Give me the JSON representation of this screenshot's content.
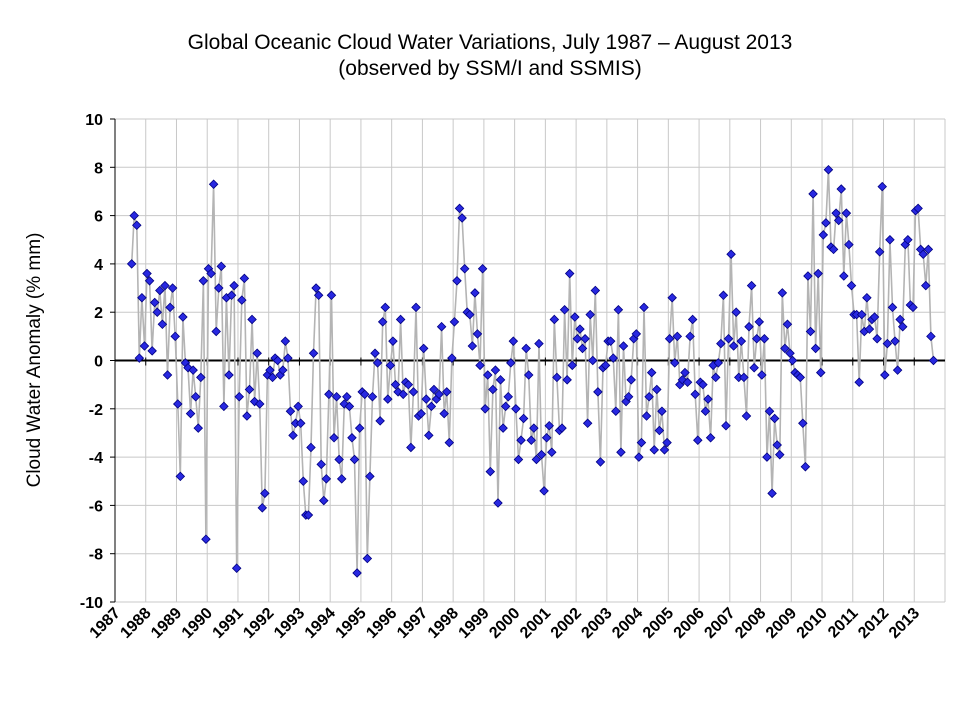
{
  "chart_data": {
    "type": "line",
    "title": "Global Oceanic Cloud Water Variations, July 1987 – August 2013",
    "subtitle": "(observed by SSM/I and SSMIS)",
    "xlabel": "",
    "ylabel": "Cloud Water Anomaly (% mm)",
    "xlim": [
      "1987-01",
      "2014-01"
    ],
    "ylim": [
      -10,
      10
    ],
    "y_ticks": [
      10,
      8,
      6,
      4,
      2,
      0,
      -2,
      -4,
      -6,
      -8,
      -10
    ],
    "x_ticks": [
      "1987",
      "1988",
      "1989",
      "1990",
      "1991",
      "1992",
      "1993",
      "1994",
      "1995",
      "1996",
      "1997",
      "1998",
      "1999",
      "2000",
      "2001",
      "2002",
      "2003",
      "2004",
      "2005",
      "2006",
      "2007",
      "2008",
      "2009",
      "2010",
      "2011",
      "2012",
      "2013"
    ],
    "grid": true,
    "legend": "none",
    "colors": {
      "marker_fill": "#2828e0",
      "marker_stroke": "#000080",
      "line": "#b4b4b4",
      "zero_line": "#000000",
      "grid": "#c8c8c8"
    },
    "series": [
      {
        "x": [
          "1987-07",
          "1987-08",
          "1987-09",
          "1987-10",
          "1987-11",
          "1987-12",
          "1988-01",
          "1988-02",
          "1988-03",
          "1988-04",
          "1988-05",
          "1988-06",
          "1988-07",
          "1988-08",
          "1988-09",
          "1988-10",
          "1988-11",
          "1988-12",
          "1989-01",
          "1989-02",
          "1989-03",
          "1989-04",
          "1989-05",
          "1989-06",
          "1989-07",
          "1989-08",
          "1989-09",
          "1989-10",
          "1989-11",
          "1989-12",
          "1990-01",
          "1990-02",
          "1990-03",
          "1990-04",
          "1990-05",
          "1990-06",
          "1990-07",
          "1990-08",
          "1990-09",
          "1990-10",
          "1990-11",
          "1990-12",
          "1991-01",
          "1991-02",
          "1991-03",
          "1991-04",
          "1991-05",
          "1991-06",
          "1991-07",
          "1991-08",
          "1991-09",
          "1991-10",
          "1991-11",
          "1991-12",
          "1992-01",
          "1992-02",
          "1992-03",
          "1992-04",
          "1992-05",
          "1992-06",
          "1992-07",
          "1992-08",
          "1992-09",
          "1992-10",
          "1992-11",
          "1992-12",
          "1993-01",
          "1993-02",
          "1993-03",
          "1993-04",
          "1993-05",
          "1993-06",
          "1993-07",
          "1993-08",
          "1993-09",
          "1993-10",
          "1993-11",
          "1993-12",
          "1994-01",
          "1994-02",
          "1994-03",
          "1994-04",
          "1994-05",
          "1994-06",
          "1994-07",
          "1994-08",
          "1994-09",
          "1994-10",
          "1994-11",
          "1994-12",
          "1995-01",
          "1995-02",
          "1995-03",
          "1995-04",
          "1995-05",
          "1995-06",
          "1995-07",
          "1995-08",
          "1995-09",
          "1995-10",
          "1995-11",
          "1995-12",
          "1996-01",
          "1996-02",
          "1996-03",
          "1996-04",
          "1996-05",
          "1996-06",
          "1996-07",
          "1996-08",
          "1996-09",
          "1996-10",
          "1996-11",
          "1996-12",
          "1997-01",
          "1997-02",
          "1997-03",
          "1997-04",
          "1997-05",
          "1997-06",
          "1997-07",
          "1997-08",
          "1997-09",
          "1997-10",
          "1997-11",
          "1997-12",
          "1998-01",
          "1998-02",
          "1998-03",
          "1998-04",
          "1998-05",
          "1998-06",
          "1998-07",
          "1998-08",
          "1998-09",
          "1998-10",
          "1998-11",
          "1998-12",
          "1999-01",
          "1999-02",
          "1999-03",
          "1999-04",
          "1999-05",
          "1999-06",
          "1999-07",
          "1999-08",
          "1999-09",
          "1999-10",
          "1999-11",
          "1999-12",
          "2000-01",
          "2000-02",
          "2000-03",
          "2000-04",
          "2000-05",
          "2000-06",
          "2000-07",
          "2000-08",
          "2000-09",
          "2000-10",
          "2000-11",
          "2000-12",
          "2001-01",
          "2001-02",
          "2001-03",
          "2001-04",
          "2001-05",
          "2001-06",
          "2001-07",
          "2001-08",
          "2001-09",
          "2001-10",
          "2001-11",
          "2001-12",
          "2002-01",
          "2002-02",
          "2002-03",
          "2002-04",
          "2002-05",
          "2002-06",
          "2002-07",
          "2002-08",
          "2002-09",
          "2002-10",
          "2002-11",
          "2002-12",
          "2003-01",
          "2003-02",
          "2003-03",
          "2003-04",
          "2003-05",
          "2003-06",
          "2003-07",
          "2003-08",
          "2003-09",
          "2003-10",
          "2003-11",
          "2003-12",
          "2004-01",
          "2004-02",
          "2004-03",
          "2004-04",
          "2004-05",
          "2004-06",
          "2004-07",
          "2004-08",
          "2004-09",
          "2004-10",
          "2004-11",
          "2004-12",
          "2005-01",
          "2005-02",
          "2005-03",
          "2005-04",
          "2005-05",
          "2005-06",
          "2005-07",
          "2005-08",
          "2005-09",
          "2005-10",
          "2005-11",
          "2005-12",
          "2006-01",
          "2006-02",
          "2006-03",
          "2006-04",
          "2006-05",
          "2006-06",
          "2006-07",
          "2006-08",
          "2006-09",
          "2006-10",
          "2006-11",
          "2006-12",
          "2007-01",
          "2007-02",
          "2007-03",
          "2007-04",
          "2007-05",
          "2007-06",
          "2007-07",
          "2007-08",
          "2007-09",
          "2007-10",
          "2007-11",
          "2007-12",
          "2008-01",
          "2008-02",
          "2008-03",
          "2008-04",
          "2008-05",
          "2008-06",
          "2008-07",
          "2008-08",
          "2008-09",
          "2008-10",
          "2008-11",
          "2008-12",
          "2009-01",
          "2009-02",
          "2009-03",
          "2009-04",
          "2009-05",
          "2009-06",
          "2009-07",
          "2009-08",
          "2009-09",
          "2009-10",
          "2009-11",
          "2009-12",
          "2010-01",
          "2010-02",
          "2010-03",
          "2010-04",
          "2010-05",
          "2010-06",
          "2010-07",
          "2010-08",
          "2010-09",
          "2010-10",
          "2010-11",
          "2010-12",
          "2011-01",
          "2011-02",
          "2011-03",
          "2011-04",
          "2011-05",
          "2011-06",
          "2011-07",
          "2011-08",
          "2011-09",
          "2011-10",
          "2011-11",
          "2011-12",
          "2012-01",
          "2012-02",
          "2012-03",
          "2012-04",
          "2012-05",
          "2012-06",
          "2012-07",
          "2012-08",
          "2012-09",
          "2012-10",
          "2012-11",
          "2012-12",
          "2013-01",
          "2013-02",
          "2013-03",
          "2013-04",
          "2013-05",
          "2013-06",
          "2013-07",
          "2013-08"
        ],
        "y": [
          4.0,
          6.0,
          5.6,
          0.1,
          2.6,
          0.6,
          3.6,
          3.3,
          0.4,
          2.4,
          2.0,
          2.9,
          1.5,
          3.1,
          -0.6,
          2.2,
          3.0,
          1.0,
          -1.8,
          -4.8,
          1.8,
          -0.1,
          -0.3,
          -2.2,
          -0.4,
          -1.5,
          -2.8,
          -0.7,
          3.3,
          -7.4,
          3.8,
          3.6,
          7.3,
          1.2,
          3.0,
          3.9,
          -1.9,
          2.6,
          -0.6,
          2.7,
          3.1,
          -8.6,
          -1.5,
          2.5,
          3.4,
          -2.3,
          -1.2,
          1.7,
          -1.7,
          0.3,
          -1.8,
          -6.1,
          -5.5,
          -0.6,
          -0.4,
          -0.7,
          0.1,
          0.0,
          -0.6,
          -0.4,
          0.8,
          0.1,
          -2.1,
          -3.1,
          -2.6,
          -1.9,
          -2.6,
          -5.0,
          -6.4,
          -6.4,
          -3.6,
          0.3,
          3.0,
          2.7,
          -4.3,
          -5.8,
          -4.9,
          -1.4,
          2.7,
          -3.2,
          -1.5,
          -4.1,
          -4.9,
          -1.8,
          -1.5,
          -1.9,
          -3.2,
          -4.1,
          -8.8,
          -2.8,
          -1.3,
          -1.4,
          -8.2,
          -4.8,
          -1.5,
          0.3,
          -0.1,
          -2.5,
          1.6,
          2.2,
          -1.6,
          -0.2,
          0.8,
          -1.0,
          -1.3,
          1.7,
          -1.4,
          -0.9,
          -1.0,
          -3.6,
          -1.3,
          2.2,
          -2.3,
          -2.2,
          0.5,
          -1.6,
          -3.1,
          -1.9,
          -1.2,
          -1.6,
          -1.4,
          1.4,
          -2.2,
          -1.3,
          -3.4,
          0.1,
          1.6,
          3.3,
          6.3,
          5.9,
          3.8,
          2.0,
          1.9,
          0.6,
          2.8,
          1.1,
          -0.2,
          3.8,
          -2.0,
          -0.6,
          -4.6,
          -1.2,
          -0.4,
          -5.9,
          -0.8,
          -2.8,
          -1.9,
          -1.5,
          -0.1,
          0.8,
          -2.0,
          -4.1,
          -3.3,
          -2.4,
          0.5,
          -0.6,
          -3.3,
          -2.8,
          -4.1,
          0.7,
          -3.9,
          -5.4,
          -3.2,
          -2.7,
          -3.8,
          1.7,
          -0.7,
          -2.9,
          -2.8,
          2.1,
          -0.8,
          3.6,
          -0.2,
          1.8,
          0.9,
          1.3,
          0.5,
          0.9,
          -2.6,
          1.9,
          0.0,
          2.9,
          -1.3,
          -4.2,
          -0.3,
          -0.2,
          0.8,
          0.8,
          0.1,
          -2.1,
          2.1,
          -3.8,
          0.6,
          -1.7,
          -1.5,
          -0.8,
          0.9,
          1.1,
          -4.0,
          -3.4,
          2.2,
          -2.3,
          -1.5,
          -0.5,
          -3.7,
          -1.2,
          -2.9,
          -2.1,
          -3.7,
          -3.4,
          0.9,
          2.6,
          -0.1,
          1.0,
          -1.0,
          -0.8,
          -0.5,
          -0.9,
          1.0,
          1.7,
          -1.4,
          -3.3,
          -0.9,
          -1.0,
          -2.1,
          -1.6,
          -3.2,
          -0.2,
          -0.7,
          -0.1,
          0.7,
          2.7,
          -2.7,
          0.9,
          4.4,
          0.6,
          2.0,
          -0.7,
          0.8,
          -0.7,
          -2.3,
          1.4,
          3.1,
          -0.3,
          0.9,
          1.6,
          -0.6,
          0.9,
          -4.0,
          -2.1,
          -5.5,
          -2.4,
          -3.5,
          -3.9,
          2.8,
          0.5,
          1.5,
          0.3,
          0.0,
          -0.5,
          -0.6,
          -0.7,
          -2.6,
          -4.4,
          3.5,
          1.2,
          6.9,
          0.5,
          3.6,
          -0.5,
          5.2,
          5.7,
          7.9,
          4.7,
          4.6,
          6.1,
          5.8,
          7.1,
          3.5,
          6.1,
          4.8,
          3.1,
          1.9,
          1.9,
          -0.9,
          1.9,
          1.2,
          2.6,
          1.3,
          1.7,
          1.8,
          0.9,
          4.5,
          7.2,
          -0.6,
          0.7,
          5.0,
          2.2,
          0.8,
          -0.4,
          1.7,
          1.4,
          4.8,
          5.0,
          2.3,
          2.2,
          6.2,
          6.3,
          4.6,
          4.4,
          3.1,
          4.6,
          1.0,
          0.0
        ]
      }
    ]
  }
}
